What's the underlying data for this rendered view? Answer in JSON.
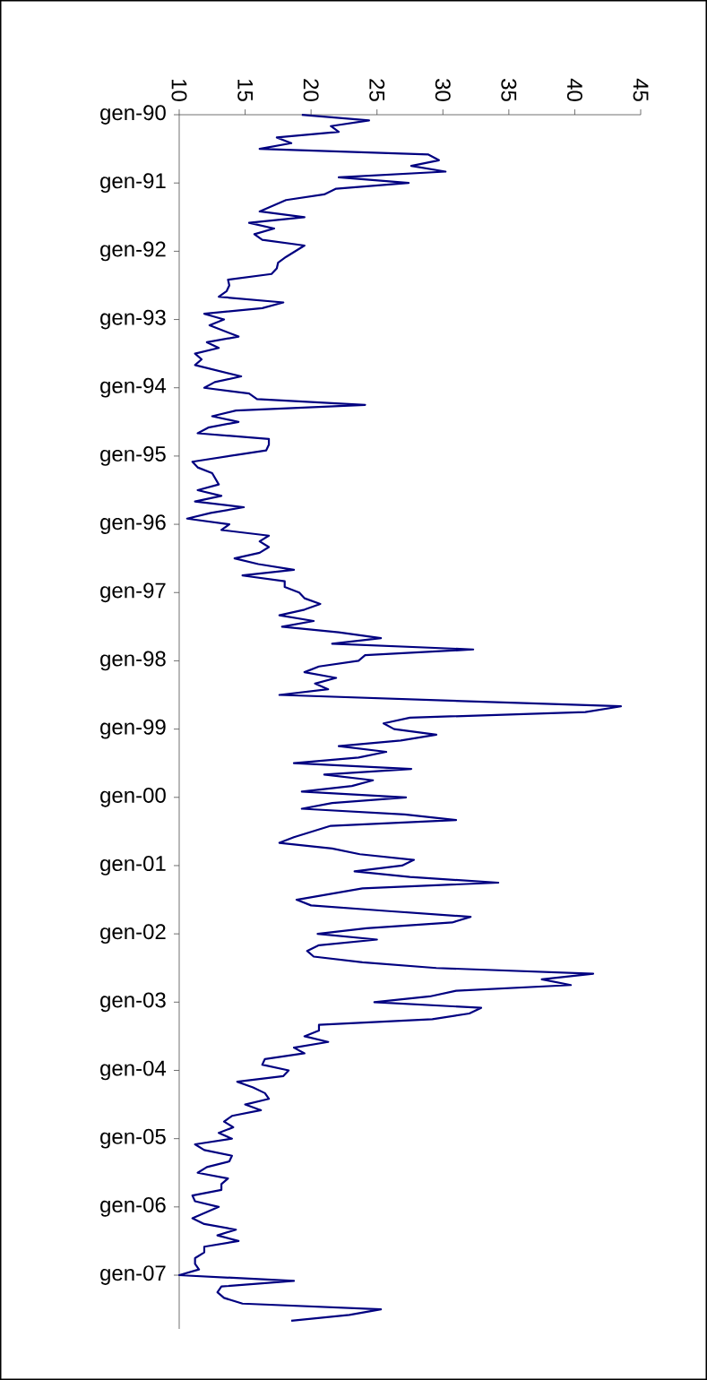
{
  "chart_data": {
    "type": "line",
    "orientation": "horizontal",
    "color": "#000080",
    "x": [
      "1990-01",
      "1990-02",
      "1990-03",
      "1990-04",
      "1990-05",
      "1990-06",
      "1990-07",
      "1990-08",
      "1990-09",
      "1990-10",
      "1990-11",
      "1990-12",
      "1991-01",
      "1991-02",
      "1991-03",
      "1991-04",
      "1991-06",
      "1991-07",
      "1991-08",
      "1991-09",
      "1991-10",
      "1991-11",
      "1991-12",
      "1992-02",
      "1992-03",
      "1992-04",
      "1992-05",
      "1992-06",
      "1992-07",
      "1992-08",
      "1992-09",
      "1992-10",
      "1992-11",
      "1992-12",
      "1993-01",
      "1993-02",
      "1993-04",
      "1993-05",
      "1993-06",
      "1993-07",
      "1993-08",
      "1993-09",
      "1993-11",
      "1993-12",
      "1994-01",
      "1994-02",
      "1994-03",
      "1994-04",
      "1994-05",
      "1994-06",
      "1994-07",
      "1994-08",
      "1994-09",
      "1994-10",
      "1994-11",
      "1994-12",
      "1995-02",
      "1995-03",
      "1995-04",
      "1995-06",
      "1995-07",
      "1995-08",
      "1995-09",
      "1995-10",
      "1995-11",
      "1995-12",
      "1996-01",
      "1996-02",
      "1996-03",
      "1996-04",
      "1996-05",
      "1996-06",
      "1996-07",
      "1996-08",
      "1996-09",
      "1996-10",
      "1996-11",
      "1996-12",
      "1997-01",
      "1997-02",
      "1997-03",
      "1997-04",
      "1997-05",
      "1997-06",
      "1997-07",
      "1997-08",
      "1997-09",
      "1997-10",
      "1997-11",
      "1997-12",
      "1998-01",
      "1998-02",
      "1998-03",
      "1998-04",
      "1998-05",
      "1998-06",
      "1998-07",
      "1998-09",
      "1998-10",
      "1998-11",
      "1998-12",
      "1999-01",
      "1999-02",
      "1999-03",
      "1999-04",
      "1999-05",
      "1999-06",
      "1999-07",
      "1999-08",
      "1999-09",
      "1999-10",
      "1999-11",
      "1999-12",
      "2000-01",
      "2000-02",
      "2000-03",
      "2000-04",
      "2000-05",
      "2000-06",
      "2000-08",
      "2000-09",
      "2000-10",
      "2000-11",
      "2000-12",
      "2001-01",
      "2001-02",
      "2001-03",
      "2001-04",
      "2001-05",
      "2001-07",
      "2001-08",
      "2001-09",
      "2001-10",
      "2001-11",
      "2001-12",
      "2002-01",
      "2002-02",
      "2002-03",
      "2002-04",
      "2002-05",
      "2002-06",
      "2002-07",
      "2002-08",
      "2002-09",
      "2002-10",
      "2002-11",
      "2002-12",
      "2003-01",
      "2003-02",
      "2003-03",
      "2003-04",
      "2003-05",
      "2003-06",
      "2003-07",
      "2003-08",
      "2003-09",
      "2003-10",
      "2003-11",
      "2003-12",
      "2004-01",
      "2004-02",
      "2004-03",
      "2004-04",
      "2004-05",
      "2004-06",
      "2004-07",
      "2004-08",
      "2004-09",
      "2004-10",
      "2004-11",
      "2004-12",
      "2005-01",
      "2005-02",
      "2005-03",
      "2005-04",
      "2005-05",
      "2005-06",
      "2005-07",
      "2005-08",
      "2005-09",
      "2005-10",
      "2005-11",
      "2005-12",
      "2006-01",
      "2006-03",
      "2006-04",
      "2006-05",
      "2006-06",
      "2006-07",
      "2006-08",
      "2006-09",
      "2006-10",
      "2006-11",
      "2006-12",
      "2007-01",
      "2007-02",
      "2007-03",
      "2007-04",
      "2007-05",
      "2007-06",
      "2007-07",
      "2007-08",
      "2007-09"
    ],
    "values": [
      19.3,
      24.4,
      21.5,
      22.1,
      17.4,
      18.5,
      16.1,
      28.9,
      29.7,
      27.6,
      30.2,
      22.1,
      27.4,
      21.9,
      21.0,
      18.1,
      16.1,
      19.5,
      15.3,
      17.2,
      15.7,
      16.3,
      19.5,
      18.1,
      17.5,
      17.4,
      17.0,
      13.7,
      13.8,
      13.6,
      13.0,
      17.9,
      16.3,
      11.9,
      13.4,
      12.3,
      14.5,
      12.1,
      13.0,
      11.2,
      11.7,
      11.2,
      14.7,
      12.7,
      11.9,
      15.3,
      15.9,
      24.1,
      14.3,
      12.5,
      14.5,
      12.2,
      11.4,
      16.8,
      16.8,
      16.6,
      11.0,
      11.4,
      12.5,
      13.0,
      11.4,
      13.2,
      11.2,
      14.9,
      12.4,
      10.6,
      13.8,
      13.2,
      16.8,
      16.1,
      16.8,
      16.1,
      14.2,
      16.0,
      18.7,
      14.8,
      18.0,
      18.0,
      19.1,
      19.5,
      20.7,
      19.5,
      17.6,
      20.2,
      17.8,
      22.1,
      25.3,
      21.6,
      32.3,
      24.1,
      23.6,
      20.6,
      19.5,
      21.9,
      20.3,
      21.3,
      17.6,
      43.5,
      40.8,
      27.5,
      25.5,
      26.3,
      29.5,
      26.8,
      22.1,
      25.7,
      23.6,
      18.7,
      27.6,
      21.0,
      24.7,
      23.1,
      19.3,
      27.2,
      21.6,
      19.3,
      27.1,
      31.0,
      21.5,
      18.7,
      17.6,
      21.6,
      23.7,
      27.8,
      26.9,
      23.3,
      27.5,
      34.2,
      23.9,
      18.9,
      20.0,
      25.9,
      32.1,
      30.7,
      24.2,
      20.5,
      25.0,
      20.6,
      19.7,
      20.2,
      23.9,
      29.5,
      41.4,
      37.5,
      39.7,
      31.0,
      29.0,
      24.8,
      32.9,
      32.0,
      29.2,
      20.6,
      20.6,
      19.5,
      21.3,
      18.7,
      19.5,
      16.5,
      16.3,
      18.3,
      17.9,
      14.4,
      15.6,
      16.5,
      16.8,
      15.0,
      16.2,
      14.0,
      13.4,
      14.1,
      13.0,
      14.0,
      11.2,
      11.9,
      14.0,
      13.8,
      12.1,
      11.4,
      13.7,
      13.2,
      13.2,
      11.0,
      11.2,
      13.0,
      11.0,
      11.9,
      14.3,
      12.9,
      14.5,
      11.9,
      11.9,
      11.2,
      11.2,
      11.5,
      10.0,
      18.7,
      13.2,
      12.9,
      13.4,
      14.8,
      25.3,
      22.9,
      18.5
    ],
    "xlim": [
      10,
      45
    ],
    "xticks": [
      10,
      15,
      20,
      25,
      30,
      35,
      40,
      45
    ],
    "ylim": [
      "2007-10-15",
      "1990-01"
    ],
    "yticks": [
      {
        "value": "1990-01",
        "label": "gen-90"
      },
      {
        "value": "1991-01",
        "label": "gen-91"
      },
      {
        "value": "1992-01",
        "label": "gen-92"
      },
      {
        "value": "1993-01",
        "label": "gen-93"
      },
      {
        "value": "1994-01",
        "label": "gen-94"
      },
      {
        "value": "1995-01",
        "label": "gen-95"
      },
      {
        "value": "1996-01",
        "label": "gen-96"
      },
      {
        "value": "1997-01",
        "label": "gen-97"
      },
      {
        "value": "1998-01",
        "label": "gen-98"
      },
      {
        "value": "1999-01",
        "label": "gen-99"
      },
      {
        "value": "2000-01",
        "label": "gen-00"
      },
      {
        "value": "2001-01",
        "label": "gen-01"
      },
      {
        "value": "2002-01",
        "label": "gen-02"
      },
      {
        "value": "2003-01",
        "label": "gen-03"
      },
      {
        "value": "2004-01",
        "label": "gen-04"
      },
      {
        "value": "2005-01",
        "label": "gen-05"
      },
      {
        "value": "2006-01",
        "label": "gen-06"
      },
      {
        "value": "2007-01",
        "label": "gen-07"
      }
    ]
  }
}
